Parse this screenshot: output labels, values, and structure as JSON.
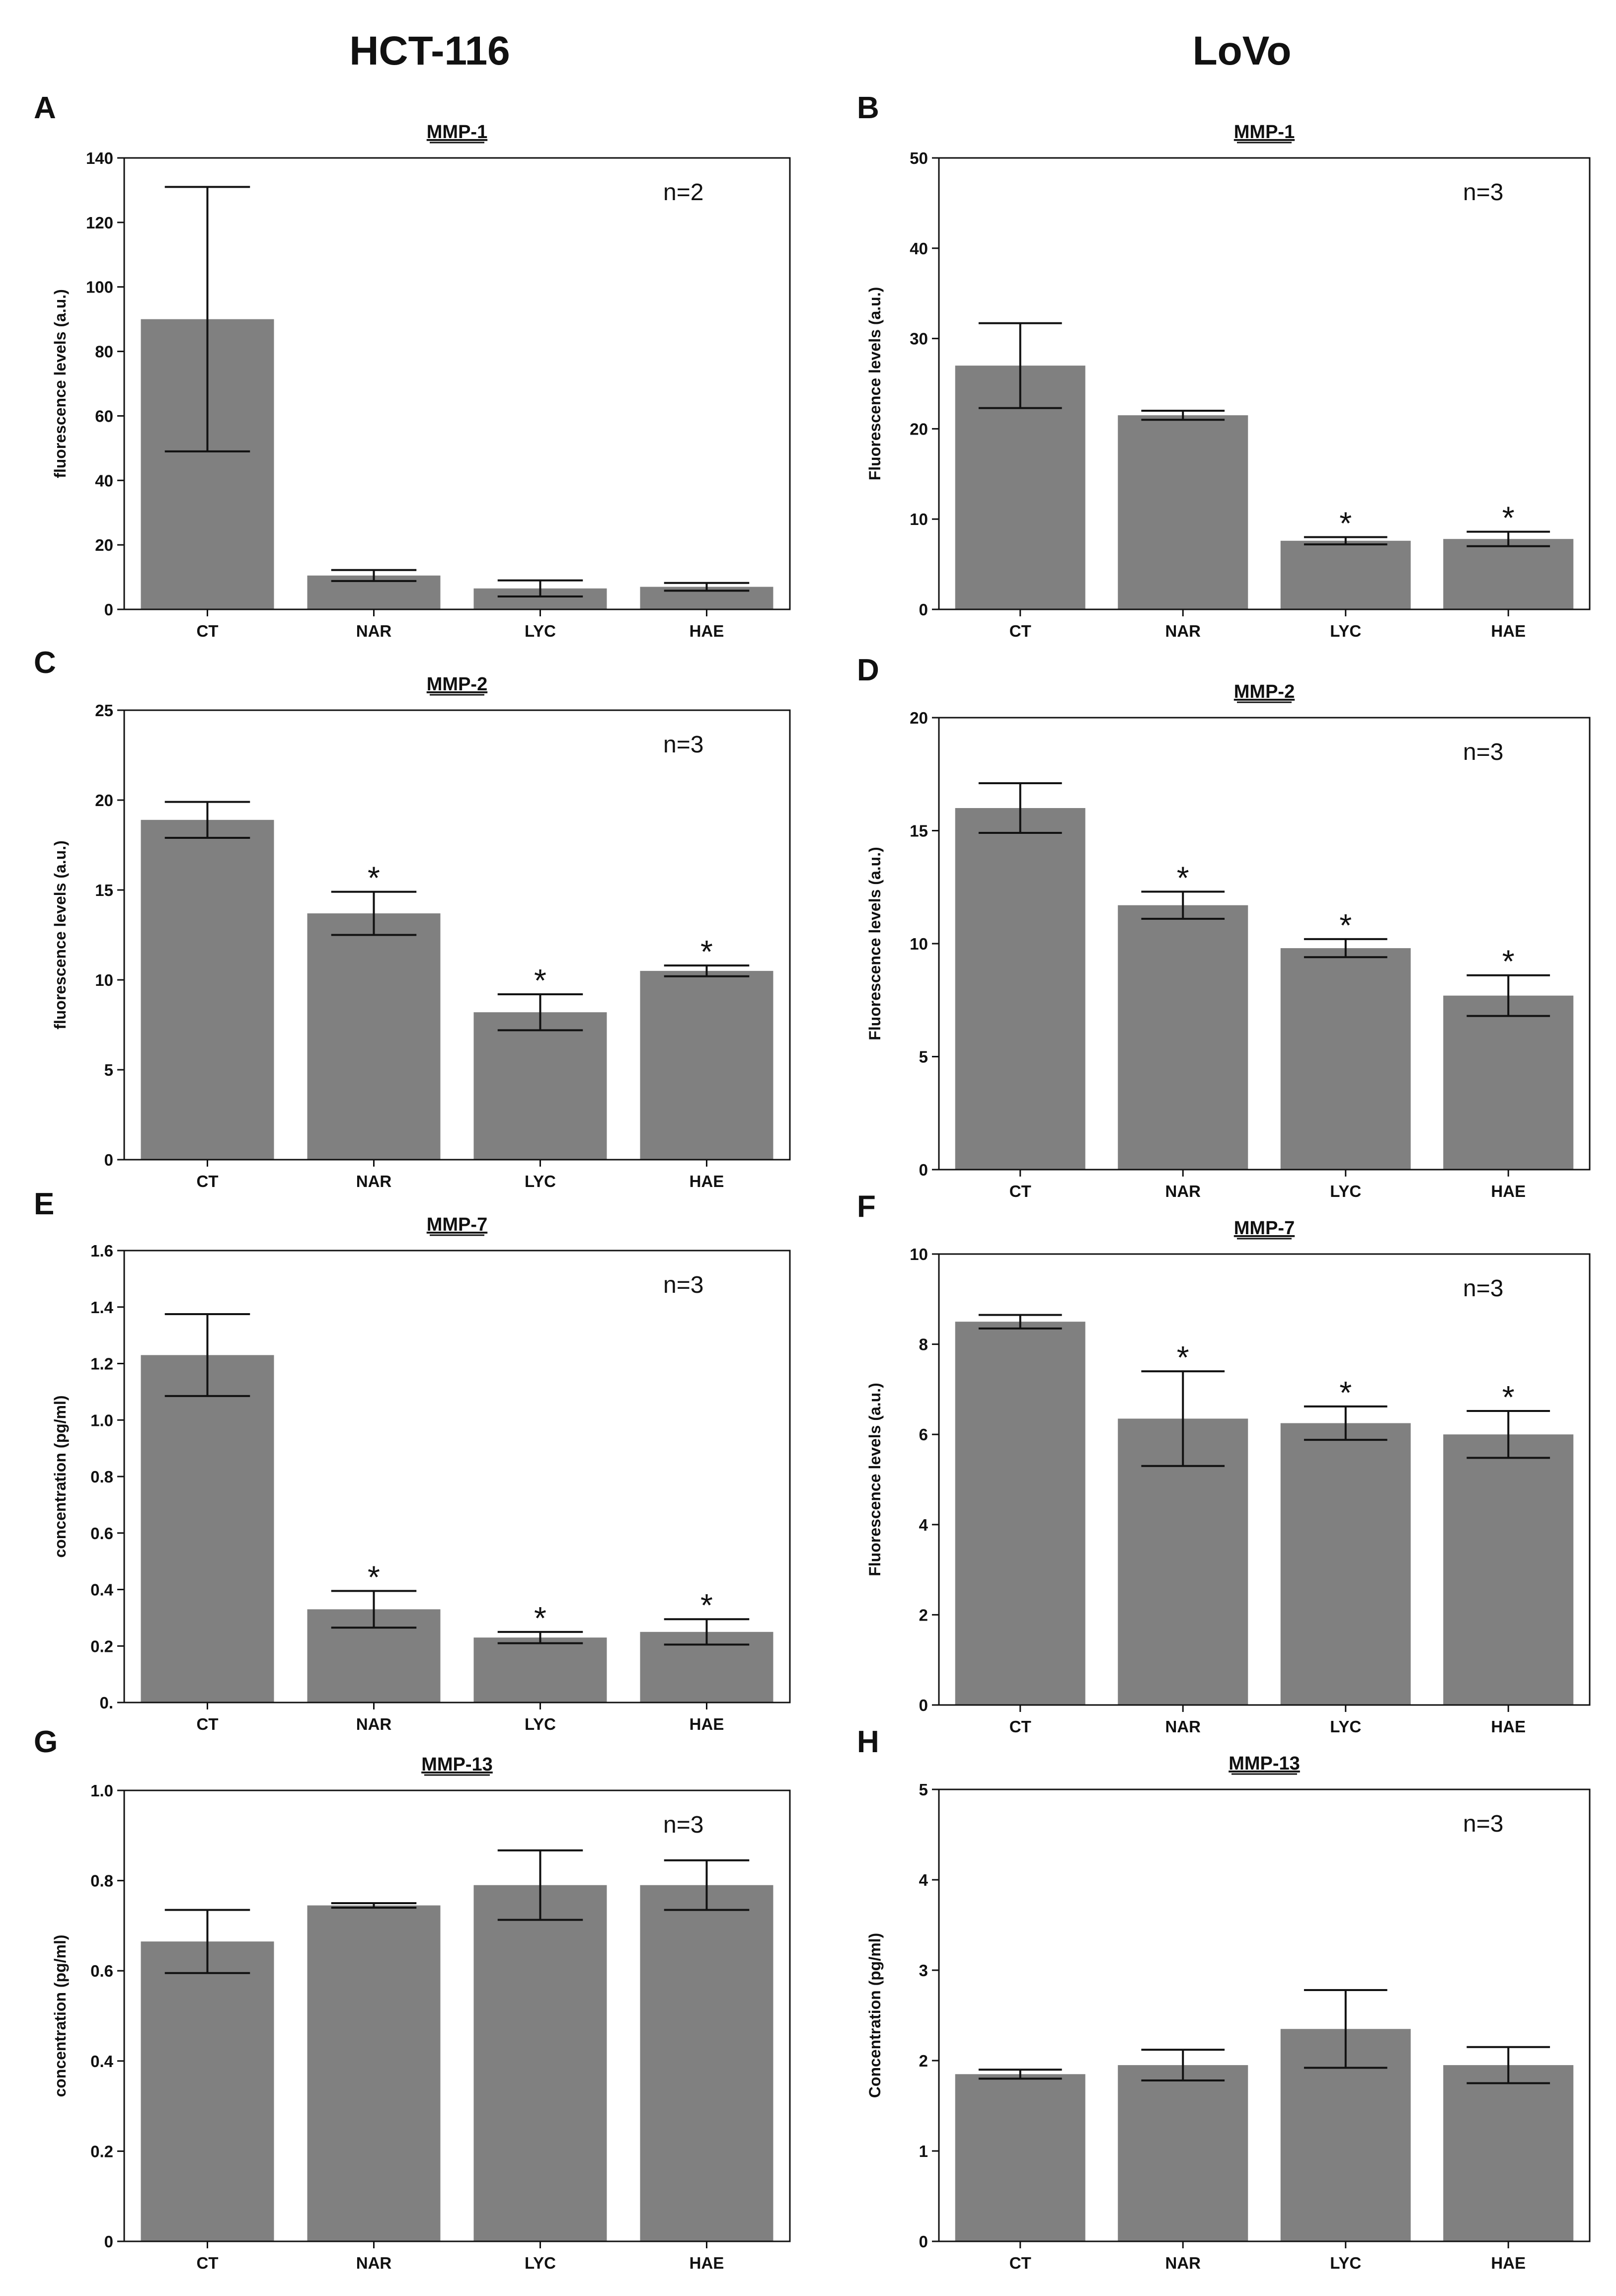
{
  "column_titles": [
    "HCT-116",
    "LoVo"
  ],
  "bar_color": "#808080",
  "chart_data": [
    {
      "panel": "A",
      "type": "bar",
      "title": "MMP-1",
      "xlabel": "",
      "ylabel": "fluorescence levels (a.u.)",
      "ylim": [
        0,
        140
      ],
      "yticks": [
        "0",
        "20",
        "40",
        "60",
        "80",
        "100",
        "120",
        "140"
      ],
      "n_label": "n=2",
      "categories": [
        "CT",
        "NAR",
        "LYC",
        "HAE"
      ],
      "values": [
        90,
        10.5,
        6.5,
        7
      ],
      "errors": [
        41,
        1.7,
        2.5,
        1.2
      ],
      "significance": [
        "",
        "",
        "",
        ""
      ]
    },
    {
      "panel": "B",
      "type": "bar",
      "title": "MMP-1",
      "xlabel": "",
      "ylabel": "Fluorescence levels (a.u.)",
      "ylim": [
        0,
        50
      ],
      "yticks": [
        "0",
        "10",
        "20",
        "30",
        "40",
        "50"
      ],
      "n_label": "n=3",
      "categories": [
        "CT",
        "NAR",
        "LYC",
        "HAE"
      ],
      "values": [
        27,
        21.5,
        7.6,
        7.8
      ],
      "errors": [
        4.7,
        0.5,
        0.4,
        0.8
      ],
      "significance": [
        "",
        "",
        "*",
        "*"
      ]
    },
    {
      "panel": "C",
      "type": "bar",
      "title": "MMP-2",
      "xlabel": "",
      "ylabel": "fluorescence levels (a.u.)",
      "ylim": [
        0,
        25
      ],
      "yticks": [
        "0",
        "5",
        "10",
        "15",
        "20",
        "25"
      ],
      "n_label": "n=3",
      "categories": [
        "CT",
        "NAR",
        "LYC",
        "HAE"
      ],
      "values": [
        18.9,
        13.7,
        8.2,
        10.5
      ],
      "errors": [
        1.0,
        1.2,
        1.0,
        0.3
      ],
      "significance": [
        "",
        "*",
        "*",
        "*"
      ]
    },
    {
      "panel": "D",
      "type": "bar",
      "title": "MMP-2",
      "xlabel": "",
      "ylabel": "Fluorescence levels (a.u.)",
      "ylim": [
        0,
        20
      ],
      "yticks": [
        "0",
        "5",
        "10",
        "15",
        "20"
      ],
      "n_label": "n=3",
      "categories": [
        "CT",
        "NAR",
        "LYC",
        "HAE"
      ],
      "values": [
        16.0,
        11.7,
        9.8,
        7.7
      ],
      "errors": [
        1.1,
        0.6,
        0.4,
        0.9
      ],
      "significance": [
        "",
        "*",
        "*",
        "*"
      ]
    },
    {
      "panel": "E",
      "type": "bar",
      "title": "MMP-7",
      "xlabel": "",
      "ylabel": "concentration (pg/ml)",
      "ylim": [
        0,
        1.6
      ],
      "yticks": [
        "0.",
        "0.2",
        "0.4",
        "0.6",
        "0.8",
        "1.0",
        "1.2",
        "1.4",
        "1.6"
      ],
      "n_label": "n=3",
      "categories": [
        "CT",
        "NAR",
        "LYC",
        "HAE"
      ],
      "values": [
        1.23,
        0.33,
        0.23,
        0.25
      ],
      "errors": [
        0.145,
        0.065,
        0.02,
        0.045
      ],
      "significance": [
        "",
        "*",
        "*",
        "*"
      ]
    },
    {
      "panel": "F",
      "type": "bar",
      "title": "MMP-7",
      "xlabel": "",
      "ylabel": "Fluorescence levels (a.u.)",
      "ylim": [
        0,
        10
      ],
      "yticks": [
        "0",
        "2",
        "4",
        "6",
        "8",
        "10"
      ],
      "n_label": "n=3",
      "categories": [
        "CT",
        "NAR",
        "LYC",
        "HAE"
      ],
      "values": [
        8.5,
        6.35,
        6.25,
        6.0
      ],
      "errors": [
        0.15,
        1.05,
        0.37,
        0.52
      ],
      "significance": [
        "",
        "*",
        "*",
        "*"
      ]
    },
    {
      "panel": "G",
      "type": "bar",
      "title": "MMP-13",
      "xlabel": "",
      "ylabel": "concentration (pg/ml)",
      "ylim": [
        0,
        1.0
      ],
      "yticks": [
        "0",
        "0.2",
        "0.4",
        "0.6",
        "0.8",
        "1.0"
      ],
      "n_label": "n=3",
      "categories": [
        "CT",
        "NAR",
        "LYC",
        "HAE"
      ],
      "values": [
        0.665,
        0.745,
        0.79,
        0.79
      ],
      "errors": [
        0.07,
        0.005,
        0.077,
        0.055
      ],
      "significance": [
        "",
        "",
        "",
        ""
      ]
    },
    {
      "panel": "H",
      "type": "bar",
      "title": "MMP-13",
      "xlabel": "",
      "ylabel": "Concentration (pg/ml)",
      "ylim": [
        0,
        5
      ],
      "yticks": [
        "0",
        "1",
        "2",
        "3",
        "4",
        "5"
      ],
      "n_label": "n=3",
      "categories": [
        "CT",
        "NAR",
        "LYC",
        "HAE"
      ],
      "values": [
        1.85,
        1.95,
        2.35,
        1.95
      ],
      "errors": [
        0.05,
        0.17,
        0.43,
        0.2
      ],
      "significance": [
        "",
        "",
        "",
        ""
      ]
    }
  ]
}
